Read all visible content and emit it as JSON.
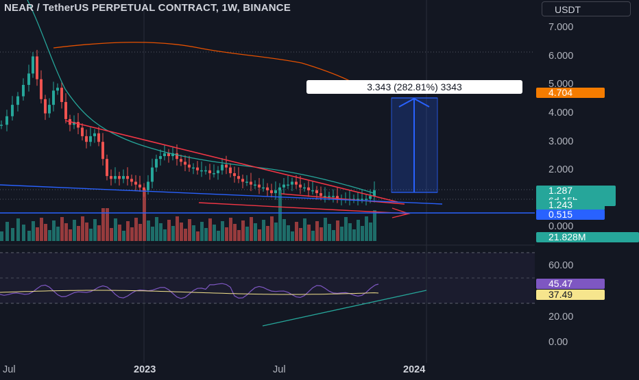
{
  "header": {
    "title": "NEAR / TetherUS PERPETUAL CONTRACT, 1W, BINANCE",
    "currency_button": "USDT"
  },
  "measure": {
    "label": "3.343 (282.81%) 3343"
  },
  "price_axis": {
    "labels": [
      "7.000",
      "6.000",
      "5.000",
      "4.000",
      "3.000",
      "2.000",
      "0.000"
    ]
  },
  "price_tags": {
    "target": "4.704",
    "last": "1.287",
    "countdown": "6d 15h",
    "level": "1.243",
    "support": "0.515",
    "volume": "21.828M"
  },
  "rsi_axis": {
    "labels": [
      "60.00",
      "20.00",
      "0.00"
    ],
    "rsi_value": "45.47",
    "ma_value": "37.49"
  },
  "time_axis": {
    "labels": [
      "Jul",
      "2023",
      "Jul",
      "2024"
    ]
  },
  "colors": {
    "background": "#131722",
    "bull": "#26a69a",
    "bear": "#ef5350",
    "trendline": "#f23645",
    "support_line": "#2962ff",
    "rsi": "#7e57c2",
    "rsi_ma": "#f6e58d",
    "ema_fast": "#26a69a",
    "ema_slow": "#f57c00"
  }
}
